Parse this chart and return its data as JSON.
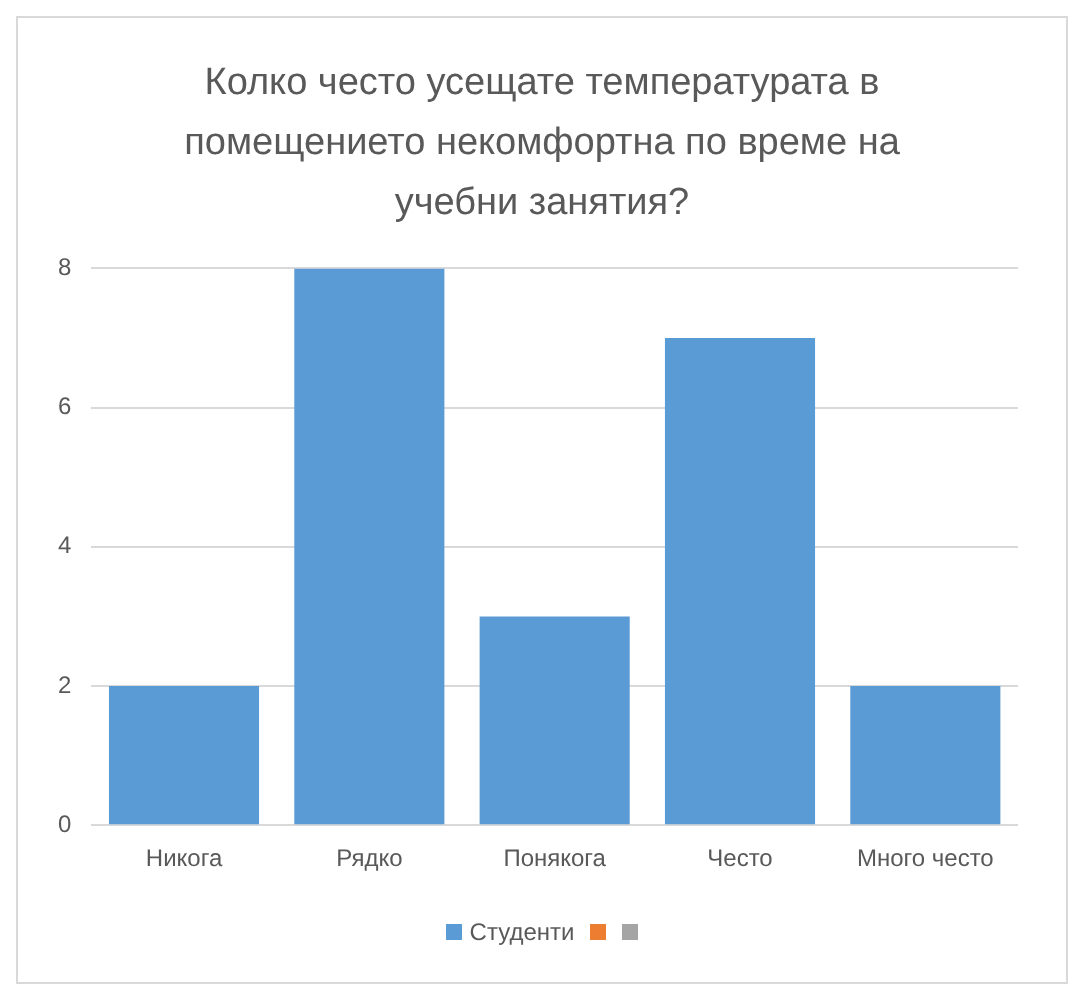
{
  "chart_data": {
    "type": "bar",
    "title": "Колко често усещате температурата в помещението некомфортна по време на учебни занятия?",
    "categories": [
      "Никога",
      "Рядко",
      "Понякога",
      "Често",
      "Много често"
    ],
    "series": [
      {
        "name": "Студенти",
        "color": "#5b9bd5",
        "values": [
          2,
          8,
          3,
          7,
          2
        ]
      }
    ],
    "ylim": [
      0,
      8
    ],
    "yticks": [
      0,
      2,
      4,
      6,
      8
    ],
    "grid": "y",
    "legend": "bottom"
  }
}
